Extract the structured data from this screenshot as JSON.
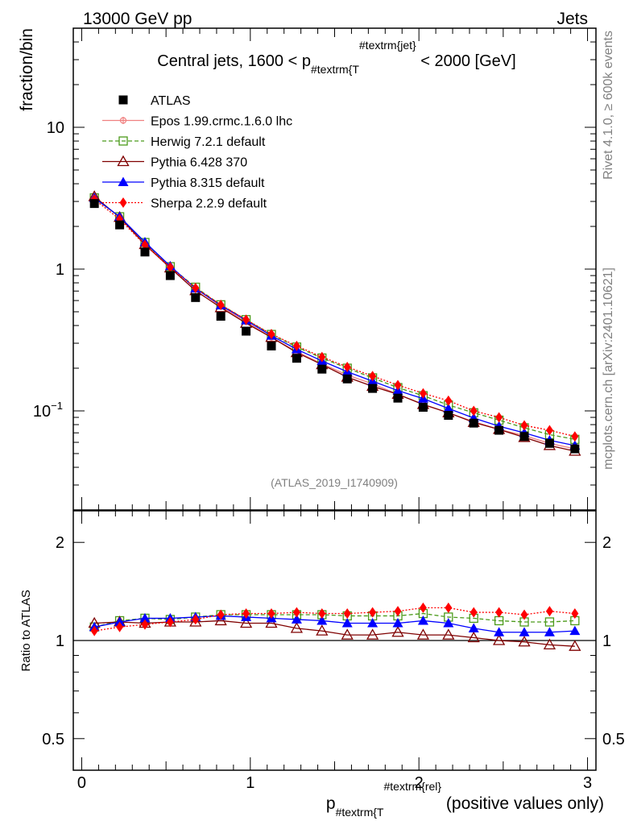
{
  "header": {
    "left": "13000 GeV pp",
    "right": "Jets"
  },
  "side_labels": {
    "rivet": "Rivet 4.1.0, ≥ 600k events",
    "mcplots": "mcplots.cern.ch [arXiv:2401.10621]"
  },
  "chart_data": {
    "type": "line",
    "title": {
      "pre": "Central jets, 1600 < p",
      "sub": "#textrm{T",
      "sup": "#textrm{jet}",
      "post": " < 2000 [GeV]"
    },
    "analysis_id": "(ATLAS_2019_I1740909)",
    "ylabel": "fraction/bin",
    "ratio_ylabel": "Ratio to ATLAS",
    "xlabel": {
      "pre": "p",
      "sub": "#textrm{T",
      "sup": "#textrm{rel}",
      "post": " (positive values only)"
    },
    "xlim": [
      -0.05,
      3.05
    ],
    "ylim": [
      0.02,
      50
    ],
    "yscale": "log",
    "ratio_ylim": [
      0.4,
      2.5
    ],
    "ratio_yscale": "log",
    "xticks": [
      "0",
      "1",
      "2",
      "3"
    ],
    "yticks": [
      {
        "value": 10,
        "label": "10"
      },
      {
        "value": 1,
        "label": "1"
      },
      {
        "value": 0.1,
        "label": "10",
        "exp": "−1"
      }
    ],
    "ratio_yticks": [
      {
        "value": 2,
        "label": "2"
      },
      {
        "value": 1,
        "label": "1"
      },
      {
        "value": 0.5,
        "label": "0.5"
      }
    ],
    "x": [
      0.075,
      0.225,
      0.375,
      0.525,
      0.675,
      0.825,
      0.975,
      1.125,
      1.275,
      1.425,
      1.575,
      1.725,
      1.875,
      2.025,
      2.175,
      2.325,
      2.475,
      2.625,
      2.775,
      2.925
    ],
    "series": [
      {
        "name": "ATLAS",
        "color": "#000000",
        "marker": "square-filled",
        "line": "none",
        "values": [
          2.9,
          2.05,
          1.32,
          0.9,
          0.63,
          0.465,
          0.365,
          0.287,
          0.235,
          0.197,
          0.168,
          0.144,
          0.123,
          0.106,
          0.093,
          0.082,
          0.073,
          0.066,
          0.059,
          0.054
        ]
      },
      {
        "name": "Epos 1.99.crmc.1.6.0 lhc",
        "color": "#f08080",
        "marker": "plus-circle",
        "line": "solid",
        "values": [
          3.15,
          2.35,
          1.53,
          1.04,
          0.735,
          0.545,
          0.425,
          0.33,
          0.262,
          0.215,
          0.179,
          0.155,
          0.131,
          0.111,
          0.097,
          0.084,
          0.074,
          0.067,
          0.059,
          0.054
        ]
      },
      {
        "name": "Herwig 7.2.1 default",
        "color": "#4b9a1a",
        "marker": "square-open",
        "line": "dashed",
        "values": [
          3.18,
          2.34,
          1.54,
          1.04,
          0.745,
          0.56,
          0.44,
          0.346,
          0.282,
          0.236,
          0.2,
          0.171,
          0.146,
          0.128,
          0.11,
          0.097,
          0.086,
          0.076,
          0.068,
          0.063
        ]
      },
      {
        "name": "Pythia 6.428 370",
        "color": "#7f0000",
        "marker": "triangle-open",
        "line": "solid",
        "values": [
          3.25,
          2.32,
          1.49,
          1.02,
          0.705,
          0.535,
          0.415,
          0.33,
          0.258,
          0.212,
          0.173,
          0.149,
          0.131,
          0.111,
          0.097,
          0.083,
          0.074,
          0.065,
          0.057,
          0.052
        ]
      },
      {
        "name": "Pythia 8.315 default",
        "color": "#0000ff",
        "marker": "triangle-filled",
        "line": "solid",
        "values": [
          3.18,
          2.34,
          1.55,
          1.05,
          0.73,
          0.555,
          0.435,
          0.339,
          0.272,
          0.225,
          0.189,
          0.162,
          0.139,
          0.122,
          0.104,
          0.089,
          0.078,
          0.07,
          0.062,
          0.057
        ]
      },
      {
        "name": "Sherpa 2.2.9 default",
        "color": "#ff0000",
        "marker": "diamond-filled",
        "line": "dotted",
        "values": [
          3.1,
          2.25,
          1.48,
          1.03,
          0.735,
          0.56,
          0.44,
          0.348,
          0.287,
          0.24,
          0.204,
          0.176,
          0.152,
          0.133,
          0.118,
          0.1,
          0.09,
          0.079,
          0.073,
          0.066
        ]
      }
    ],
    "ratio_series": [
      {
        "name": "Herwig 7.2.1 default",
        "color": "#4b9a1a",
        "marker": "square-open",
        "line": "dashed",
        "values": [
          1.1,
          1.15,
          1.17,
          1.16,
          1.18,
          1.2,
          1.2,
          1.2,
          1.2,
          1.2,
          1.19,
          1.19,
          1.19,
          1.21,
          1.18,
          1.17,
          1.15,
          1.14,
          1.14,
          1.15
        ]
      },
      {
        "name": "Pythia 6.428 370",
        "color": "#7f0000",
        "marker": "triangle-open",
        "line": "solid",
        "values": [
          1.13,
          1.14,
          1.13,
          1.14,
          1.14,
          1.15,
          1.13,
          1.13,
          1.09,
          1.07,
          1.04,
          1.04,
          1.06,
          1.04,
          1.04,
          1.02,
          1.0,
          0.99,
          0.97,
          0.96
        ]
      },
      {
        "name": "Pythia 8.315 default",
        "color": "#0000ff",
        "marker": "triangle-filled",
        "line": "solid",
        "values": [
          1.1,
          1.14,
          1.17,
          1.17,
          1.18,
          1.19,
          1.18,
          1.17,
          1.16,
          1.15,
          1.13,
          1.13,
          1.13,
          1.15,
          1.13,
          1.09,
          1.06,
          1.06,
          1.06,
          1.07
        ]
      },
      {
        "name": "Sherpa 2.2.9 default",
        "color": "#ff0000",
        "marker": "diamond-filled",
        "line": "dotted",
        "values": [
          1.07,
          1.1,
          1.12,
          1.14,
          1.16,
          1.2,
          1.21,
          1.21,
          1.22,
          1.21,
          1.21,
          1.22,
          1.23,
          1.26,
          1.26,
          1.22,
          1.22,
          1.2,
          1.23,
          1.21
        ]
      }
    ]
  }
}
